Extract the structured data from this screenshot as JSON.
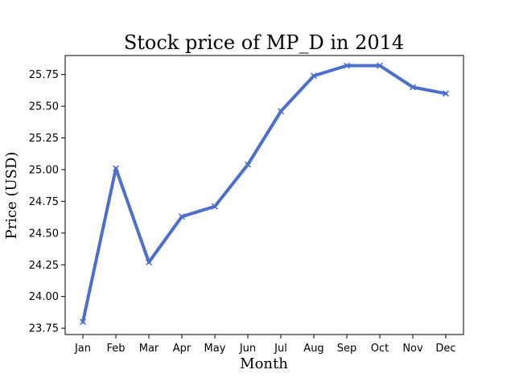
{
  "chart_data": {
    "type": "line",
    "title": "Stock price of MP_D in 2014",
    "xlabel": "Month",
    "ylabel": "Price (USD)",
    "categories": [
      "Jan",
      "Feb",
      "Mar",
      "Apr",
      "May",
      "Jun",
      "Jul",
      "Aug",
      "Sep",
      "Oct",
      "Nov",
      "Dec"
    ],
    "series": [
      {
        "name": "",
        "values": [
          23.8,
          25.01,
          24.27,
          24.63,
          24.71,
          25.04,
          25.46,
          25.74,
          25.82,
          25.82,
          25.65,
          25.6
        ],
        "color": "#4c6fcc",
        "marker": "x"
      }
    ],
    "ylim": [
      23.7,
      25.9
    ],
    "yticks": [
      "23.75",
      "24.00",
      "24.25",
      "24.50",
      "24.75",
      "25.00",
      "25.25",
      "25.50",
      "25.75"
    ],
    "grid": false,
    "legend": "none"
  }
}
